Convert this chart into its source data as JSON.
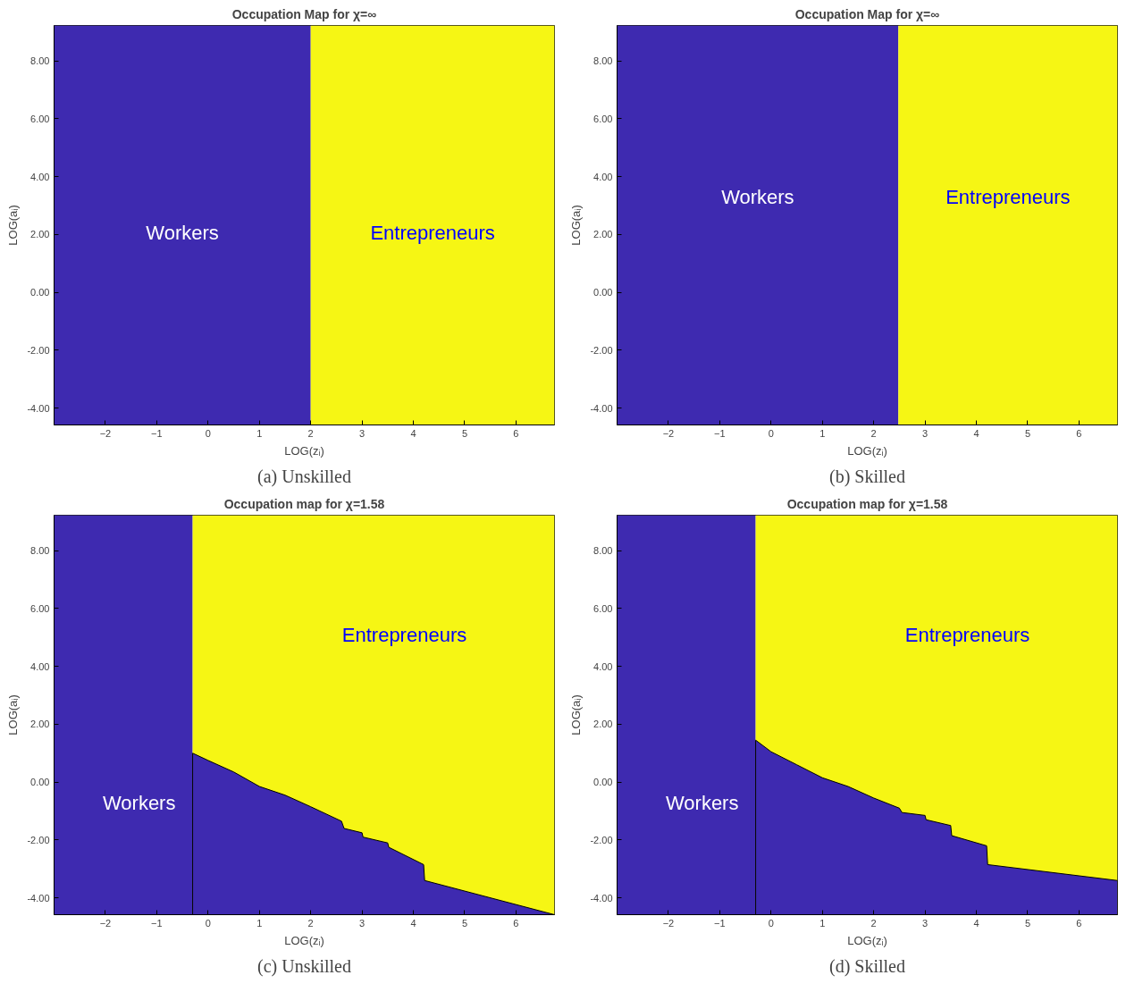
{
  "chart_data": [
    {
      "type": "area",
      "title": "Occupation Map for χ=∞",
      "xlabel": "LOG(zᵢ)",
      "ylabel": "LOG(aᵢ)",
      "xlim": [
        -3.0,
        6.75
      ],
      "ylim": [
        -4.58,
        9.22
      ],
      "xticks": [
        -2,
        -1,
        0,
        1,
        2,
        3,
        4,
        5,
        6
      ],
      "yticks": [
        {
          "value": -4,
          "label": "-4.00"
        },
        {
          "value": -2,
          "label": "-2.00"
        },
        {
          "value": 0,
          "label": "0.00"
        },
        {
          "value": 2,
          "label": "2.00"
        },
        {
          "value": 4,
          "label": "4.00"
        },
        {
          "value": 6,
          "label": "6.00"
        },
        {
          "value": 8,
          "label": "8.00"
        }
      ],
      "bands": [
        {
          "axis": "x",
          "from": -3.0,
          "to": 2.0,
          "color": "#3e2ab0"
        },
        {
          "axis": "x",
          "from": 2.0,
          "to": 6.75,
          "color": "#f6f614"
        }
      ],
      "annotations": [
        "Workers",
        "Entrepreneurs",
        "(a) Unskilled"
      ]
    },
    {
      "type": "area",
      "title": "Occupation Map for χ=∞",
      "xlabel": "LOG(zᵢ)",
      "ylabel": "LOG(aᵢ)",
      "xlim": [
        -3.0,
        6.75
      ],
      "ylim": [
        -4.58,
        9.22
      ],
      "xticks": [
        -2,
        -1,
        0,
        1,
        2,
        3,
        4,
        5,
        6
      ],
      "yticks": [
        {
          "value": -4,
          "label": "-4.00"
        },
        {
          "value": -2,
          "label": "-2.00"
        },
        {
          "value": 0,
          "label": "0.00"
        },
        {
          "value": 2,
          "label": "2.00"
        },
        {
          "value": 4,
          "label": "4.00"
        },
        {
          "value": 6,
          "label": "6.00"
        },
        {
          "value": 8,
          "label": "8.00"
        }
      ],
      "bands": [
        {
          "axis": "x",
          "from": -3.0,
          "to": 2.48,
          "color": "#3e2ab0"
        },
        {
          "axis": "x",
          "from": 2.48,
          "to": 6.75,
          "color": "#f6f614"
        }
      ],
      "annotations": [
        "Workers",
        "Entrepreneurs",
        "(b) Skilled"
      ]
    },
    {
      "type": "area",
      "title": "Occupation map for χ=1.58",
      "xlabel": "LOG(zᵢ)",
      "ylabel": "LOG(aᵢ)",
      "xlim": [
        -3.0,
        6.75
      ],
      "ylim": [
        -4.58,
        9.22
      ],
      "xticks": [
        -2,
        -1,
        0,
        1,
        2,
        3,
        4,
        5,
        6
      ],
      "yticks": [
        {
          "value": -4,
          "label": "-4.00"
        },
        {
          "value": -2,
          "label": "-2.00"
        },
        {
          "value": 0,
          "label": "0.00"
        },
        {
          "value": 2,
          "label": "2.00"
        },
        {
          "value": 4,
          "label": "4.00"
        },
        {
          "value": 6,
          "label": "6.00"
        },
        {
          "value": 8,
          "label": "8.00"
        }
      ],
      "bands": [
        {
          "axis": "x",
          "from": -3.0,
          "to": -0.3,
          "color": "#3e2ab0"
        },
        {
          "axis": "x",
          "from": -0.3,
          "to": 6.75,
          "color": "#f6f614"
        }
      ],
      "series": [
        {
          "color": "#3e2ab0",
          "x": [
            -0.3,
            0,
            0.5,
            1,
            1.5,
            2,
            2.6,
            2.65,
            3.0,
            3.02,
            3.5,
            3.52,
            4.2,
            4.22,
            6.75
          ],
          "values": [
            1.0,
            0.75,
            0.35,
            -0.15,
            -0.45,
            -0.85,
            -1.35,
            -1.6,
            -1.75,
            -1.9,
            -2.1,
            -2.25,
            -2.85,
            -3.4,
            -4.58
          ]
        }
      ],
      "annotations": [
        "Workers",
        "Entrepreneurs",
        "(c) Unskilled"
      ]
    },
    {
      "type": "area",
      "title": "Occupation map for χ=1.58",
      "xlabel": "LOG(zᵢ)",
      "ylabel": "LOG(aᵢ)",
      "xlim": [
        -3.0,
        6.75
      ],
      "ylim": [
        -4.58,
        9.22
      ],
      "xticks": [
        -2,
        -1,
        0,
        1,
        2,
        3,
        4,
        5,
        6
      ],
      "yticks": [
        {
          "value": -4,
          "label": "-4.00"
        },
        {
          "value": -2,
          "label": "-2.00"
        },
        {
          "value": 0,
          "label": "0.00"
        },
        {
          "value": 2,
          "label": "2.00"
        },
        {
          "value": 4,
          "label": "4.00"
        },
        {
          "value": 6,
          "label": "6.00"
        },
        {
          "value": 8,
          "label": "8.00"
        }
      ],
      "bands": [
        {
          "axis": "x",
          "from": -3.0,
          "to": -0.3,
          "color": "#3e2ab0"
        },
        {
          "axis": "x",
          "from": -0.3,
          "to": 6.75,
          "color": "#f6f614"
        }
      ],
      "series": [
        {
          "color": "#3e2ab0",
          "x": [
            -0.3,
            0,
            0.5,
            1,
            1.5,
            2,
            2.5,
            2.55,
            3.0,
            3.02,
            3.5,
            3.52,
            4.2,
            4.22,
            6.75
          ],
          "values": [
            1.45,
            1.05,
            0.6,
            0.15,
            -0.15,
            -0.55,
            -0.9,
            -1.05,
            -1.15,
            -1.3,
            -1.5,
            -1.85,
            -2.2,
            -2.85,
            -3.4
          ]
        }
      ],
      "annotations": [
        "Workers",
        "Entrepreneurs",
        "(d) Skilled"
      ]
    }
  ]
}
